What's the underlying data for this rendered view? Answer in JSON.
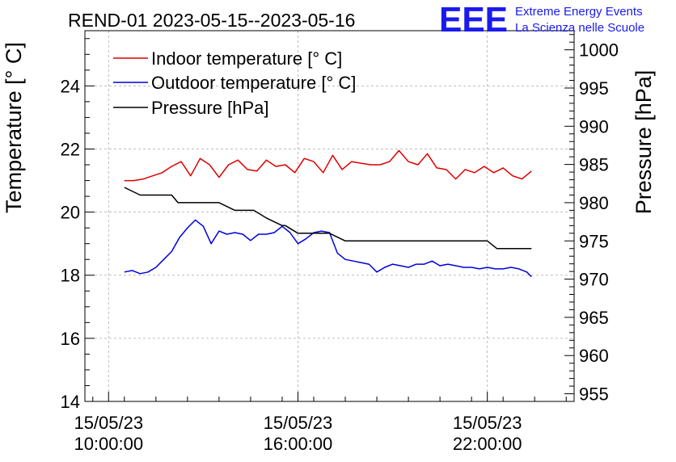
{
  "chart_data": {
    "type": "line",
    "title": "REND-01 2023-05-15--2023-05-16",
    "x_unit": "hours since 15/05/23 00:00",
    "x_ticks": [
      {
        "x": 10,
        "line1": "15/05/23",
        "line2": "10:00:00"
      },
      {
        "x": 16,
        "line1": "15/05/23",
        "line2": "16:00:00"
      },
      {
        "x": 22,
        "line1": "15/05/23",
        "line2": "22:00:00"
      }
    ],
    "xlim": [
      9.25,
      24.75
    ],
    "ylabel_left": "Temperature [° C]",
    "ylim_left": [
      14,
      25.75
    ],
    "yticks_left": [
      14,
      16,
      18,
      20,
      22,
      24
    ],
    "ylabel_right": "Pressure [hPa]",
    "ylim_right": [
      954,
      1002.5
    ],
    "yticks_right": [
      955,
      960,
      965,
      970,
      975,
      980,
      985,
      990,
      995,
      1000
    ],
    "grid": true,
    "legend_position": "top-left",
    "series": [
      {
        "name": "Indoor temperature [° C]",
        "axis": "left",
        "color": "#dd0000",
        "x": [
          10.5,
          10.8,
          11.1,
          11.4,
          11.7,
          12.0,
          12.3,
          12.6,
          12.9,
          13.2,
          13.5,
          13.8,
          14.1,
          14.4,
          14.7,
          15.0,
          15.3,
          15.6,
          15.9,
          16.2,
          16.5,
          16.8,
          17.1,
          17.4,
          17.7,
          18.0,
          18.3,
          18.6,
          18.9,
          19.2,
          19.5,
          19.8,
          20.1,
          20.4,
          20.7,
          21.0,
          21.3,
          21.6,
          21.9,
          22.2,
          22.5,
          22.8,
          23.1,
          23.4
        ],
        "y": [
          21.0,
          21.0,
          21.05,
          21.15,
          21.25,
          21.45,
          21.6,
          21.15,
          21.7,
          21.5,
          21.1,
          21.5,
          21.65,
          21.35,
          21.3,
          21.65,
          21.45,
          21.5,
          21.25,
          21.7,
          21.6,
          21.25,
          21.8,
          21.35,
          21.6,
          21.55,
          21.5,
          21.5,
          21.6,
          21.95,
          21.6,
          21.5,
          21.85,
          21.4,
          21.35,
          21.05,
          21.35,
          21.25,
          21.45,
          21.25,
          21.4,
          21.15,
          21.05,
          21.3
        ]
      },
      {
        "name": "Outdoor temperature [° C]",
        "axis": "left",
        "color": "#0000dd",
        "x": [
          10.5,
          10.75,
          11.0,
          11.25,
          11.5,
          11.75,
          12.0,
          12.25,
          12.5,
          12.75,
          13.0,
          13.25,
          13.5,
          13.75,
          14.0,
          14.25,
          14.5,
          14.75,
          15.0,
          15.25,
          15.5,
          15.75,
          16.0,
          16.25,
          16.5,
          16.75,
          17.0,
          17.25,
          17.5,
          17.75,
          18.0,
          18.25,
          18.5,
          18.75,
          19.0,
          19.25,
          19.5,
          19.75,
          20.0,
          20.25,
          20.5,
          20.75,
          21.0,
          21.25,
          21.5,
          21.75,
          22.0,
          22.25,
          22.5,
          22.75,
          23.0,
          23.25,
          23.4
        ],
        "y": [
          18.1,
          18.15,
          18.05,
          18.1,
          18.25,
          18.5,
          18.75,
          19.2,
          19.5,
          19.75,
          19.55,
          19.0,
          19.4,
          19.3,
          19.35,
          19.3,
          19.1,
          19.3,
          19.3,
          19.35,
          19.55,
          19.35,
          19.0,
          19.15,
          19.35,
          19.4,
          19.35,
          18.7,
          18.5,
          18.45,
          18.4,
          18.35,
          18.1,
          18.25,
          18.35,
          18.3,
          18.25,
          18.35,
          18.35,
          18.45,
          18.3,
          18.35,
          18.3,
          18.25,
          18.25,
          18.2,
          18.25,
          18.2,
          18.2,
          18.25,
          18.2,
          18.1,
          17.95
        ]
      },
      {
        "name": "Pressure [hPa]",
        "axis": "right",
        "color": "#000000",
        "x": [
          10.5,
          11.0,
          11.1,
          11.5,
          12.0,
          12.2,
          12.5,
          13.0,
          13.5,
          14.0,
          14.5,
          14.6,
          15.0,
          15.5,
          15.6,
          16.0,
          16.5,
          17.0,
          17.5,
          17.7,
          18.0,
          18.5,
          19.0,
          19.5,
          20.0,
          20.5,
          21.0,
          21.5,
          22.0,
          22.3,
          22.5,
          23.0,
          23.4
        ],
        "y": [
          982.0,
          981.0,
          981.0,
          981.0,
          981.0,
          980.0,
          980.0,
          980.0,
          980.0,
          979.0,
          979.0,
          979.0,
          978.0,
          977.0,
          977.0,
          976.0,
          976.0,
          976.0,
          975.0,
          975.0,
          975.0,
          975.0,
          975.0,
          975.0,
          975.0,
          975.0,
          975.0,
          975.0,
          975.0,
          974.0,
          974.0,
          974.0,
          974.0
        ]
      }
    ]
  },
  "logo": {
    "mark": "EEE",
    "line1": "Extreme Energy Events",
    "line2": "La Scienza nelle Scuole",
    "color": "#1a1aee"
  }
}
